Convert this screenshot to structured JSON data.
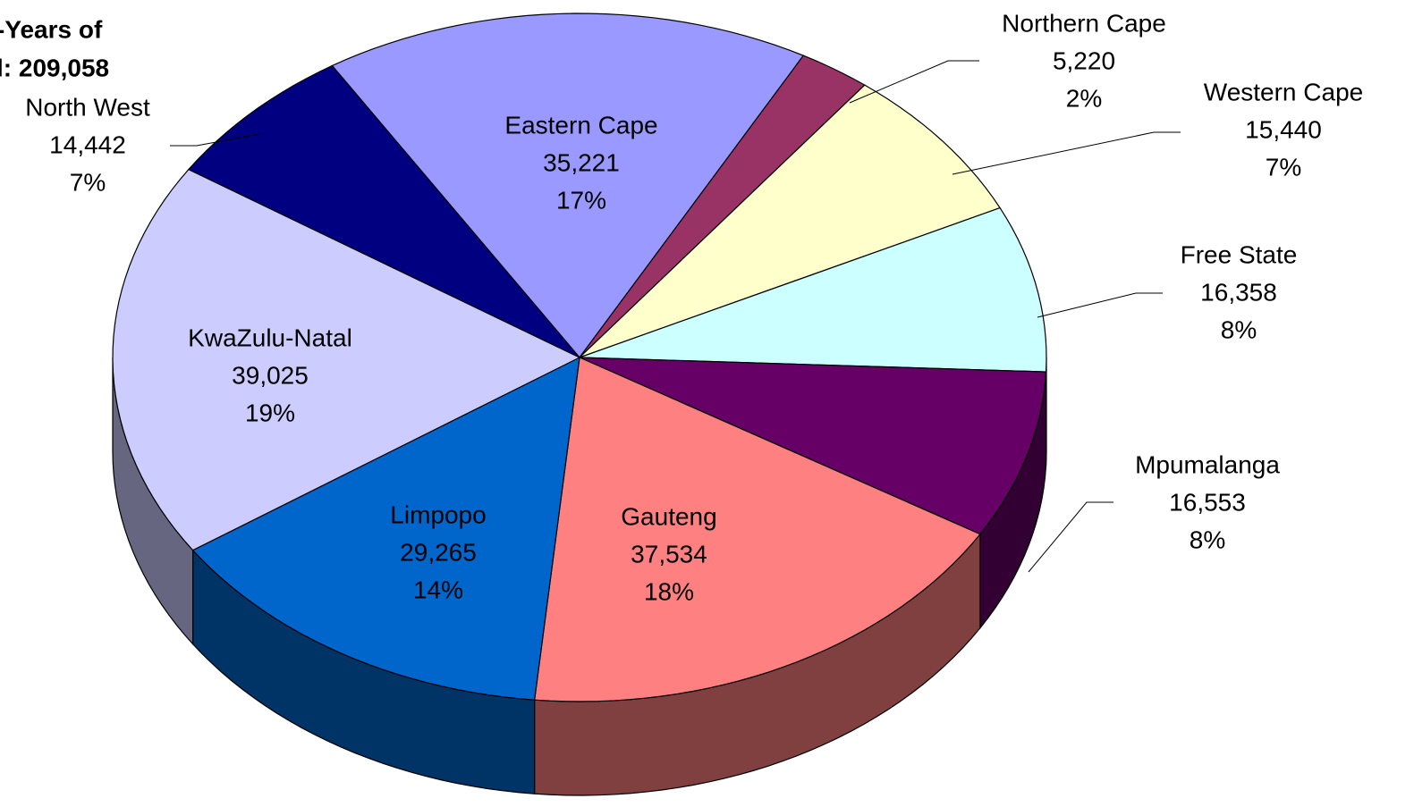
{
  "chart_data": {
    "type": "pie3d",
    "title_lines": [
      "-Years of",
      "l: 209,058"
    ],
    "categories": [
      "Eastern Cape",
      "Northern Cape",
      "Western Cape",
      "Free State",
      "Mpumalanga",
      "Gauteng",
      "Limpopo",
      "KwaZulu-Natal",
      "North West"
    ],
    "values": [
      35221,
      5220,
      15440,
      16358,
      16553,
      37534,
      29265,
      39025,
      14442
    ],
    "value_labels": [
      "35,221",
      "5,220",
      "15,440",
      "16,358",
      "16,553",
      "37,534",
      "29,265",
      "39,025",
      "14,442"
    ],
    "percent_labels": [
      "17%",
      "2%",
      "7%",
      "8%",
      "8%",
      "18%",
      "14%",
      "19%",
      "7%"
    ],
    "colors": [
      "#9999ff",
      "#993366",
      "#ffffcc",
      "#ccffff",
      "#660066",
      "#ff8080",
      "#0066cc",
      "#ccccff",
      "#000080"
    ]
  }
}
